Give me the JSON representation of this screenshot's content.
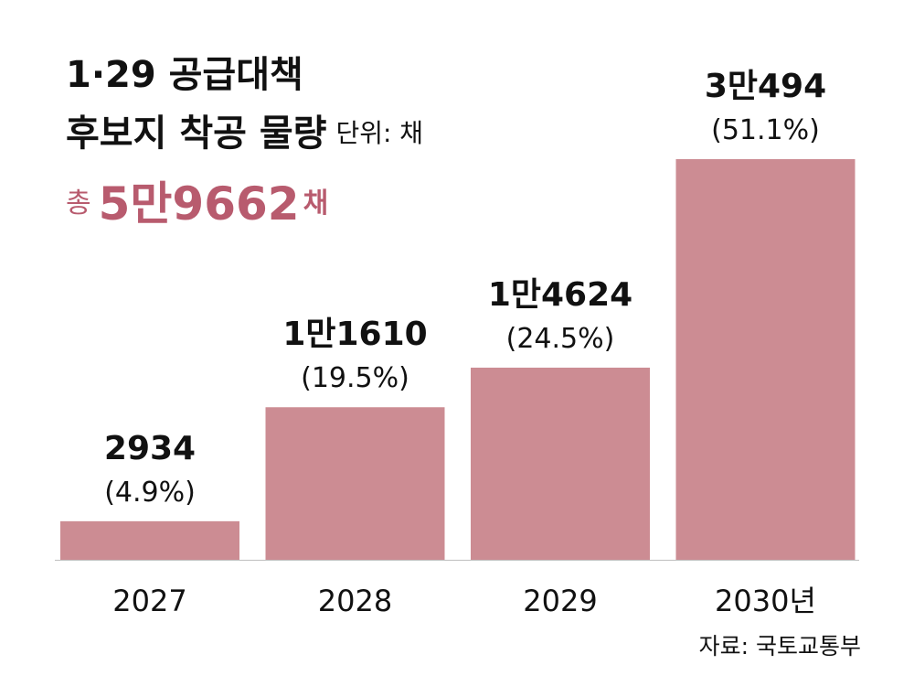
{
  "title": {
    "line1": "1·29 공급대책",
    "line2": "후보지 착공 물량",
    "unit": "단위: 채"
  },
  "total": {
    "label": "총",
    "value": "5만9662",
    "unit": "채"
  },
  "source": "자료: 국토교통부",
  "colors": {
    "bar": "#cc8c93",
    "accent": "#b85b6e",
    "text": "#111111"
  },
  "chart_data": {
    "type": "bar",
    "categories": [
      "2027",
      "2028",
      "2029",
      "2030년"
    ],
    "values": [
      2934,
      11610,
      14624,
      30494
    ],
    "value_labels": [
      "2934",
      "1만1610",
      "1만4624",
      "3만494"
    ],
    "share_labels": [
      "(4.9%)",
      "(19.5%)",
      "(24.5%)",
      "(51.1%)"
    ],
    "ylim": [
      0,
      30494
    ],
    "grid": false,
    "legend": "none"
  }
}
